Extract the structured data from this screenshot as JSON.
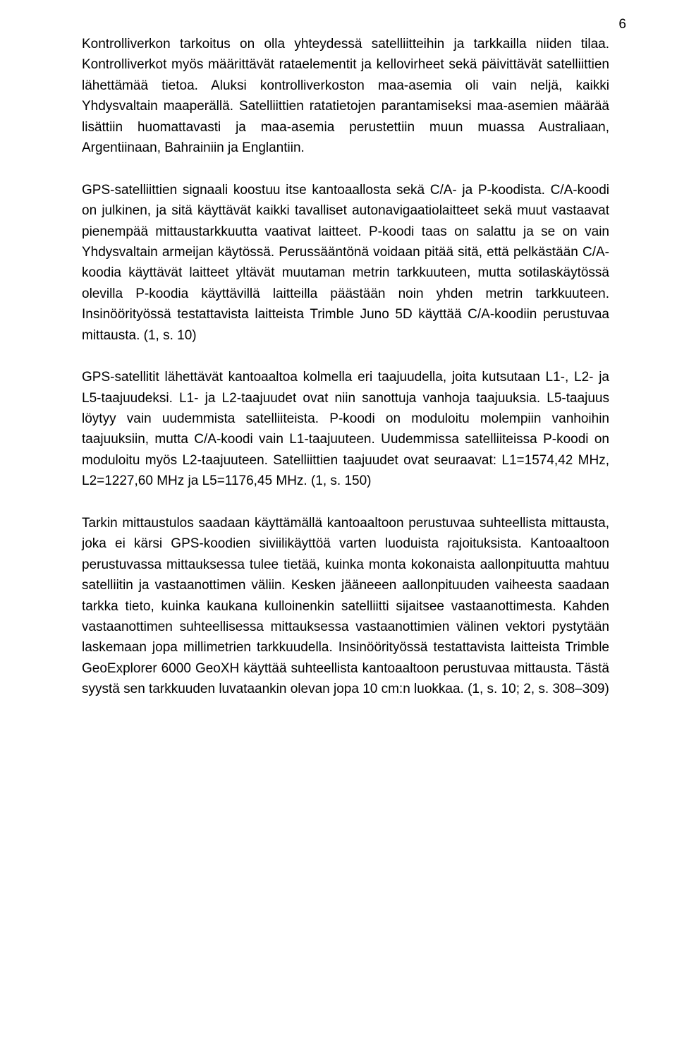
{
  "page_number": "6",
  "paragraphs": [
    "Kontrolliverkon tarkoitus on olla yhteydessä satelliitteihin ja tarkkailla niiden tilaa. Kontrolliverkot myös määrittävät rataelementit ja kellovirheet sekä päivittävät satelliittien lähettämää tietoa. Aluksi kontrolliverkoston maa-asemia oli vain neljä, kaikki Yhdysvaltain maaperällä. Satelliittien ratatietojen parantamiseksi maa-asemien määrää lisättiin huomattavasti ja maa-asemia perustettiin muun muassa Australiaan, Argentiinaan, Bahrainiin ja Englantiin.",
    "GPS-satelliittien signaali koostuu itse kantoaallosta sekä C/A- ja P-koodista. C/A-koodi on julkinen, ja sitä käyttävät kaikki tavalliset autonavigaatiolaitteet sekä muut vastaavat pienempää mittaustarkkuutta vaativat laitteet. P-koodi taas on salattu ja se on vain Yhdysvaltain armeijan käytössä. Perussääntönä voidaan pitää sitä, että pelkästään C/A-koodia käyttävät laitteet yltävät muutaman metrin tarkkuuteen, mutta sotilaskäytössä olevilla P-koodia käyttävillä laitteilla päästään noin yhden metrin tarkkuuteen. Insinöörityössä testattavista laitteista Trimble Juno 5D käyttää C/A-koodiin perustuvaa mittausta. (1, s. 10)",
    "GPS-satellitit lähettävät kantoaaltoa kolmella eri taajuudella, joita kutsutaan L1-, L2- ja L5-taajuudeksi. L1- ja L2-taajuudet ovat niin sanottuja vanhoja taajuuksia. L5-taajuus löytyy vain uudemmista satelliiteista. P-koodi on moduloitu molempiin vanhoihin taajuuksiin, mutta C/A-koodi vain L1-taajuuteen. Uudemmissa satelliiteissa P-koodi on moduloitu myös L2-taajuuteen. Satelliittien taajuudet ovat seuraavat: L1=1574,42 MHz, L2=1227,60 MHz ja L5=1176,45 MHz.  (1, s. 150)",
    "Tarkin mittaustulos saadaan käyttämällä kantoaaltoon perustuvaa suhteellista mittausta, joka ei kärsi GPS-koodien siviilikäyttöä varten luoduista rajoituksista. Kantoaaltoon perustuvassa mittauksessa tulee tietää, kuinka monta kokonaista aallonpituutta mahtuu satelliitin ja vastaanottimen väliin. Kesken jääneeen aallonpituuden vaiheesta saadaan tarkka tieto, kuinka kaukana kulloinenkin satelliitti sijaitsee vastaanottimesta. Kahden vastaanottimen suhteellisessa mittauksessa vastaanottimien välinen vektori pystytään laskemaan jopa millimetrien tarkkuudella. Insinöörityössä testattavista laitteista Trimble GeoExplorer 6000 GeoXH käyttää suhteellista kantoaaltoon perustuvaa mittausta. Tästä syystä sen tarkkuuden luvataankin olevan jopa 10 cm:n luokkaa. (1, s. 10; 2, s. 308–309)"
  ]
}
